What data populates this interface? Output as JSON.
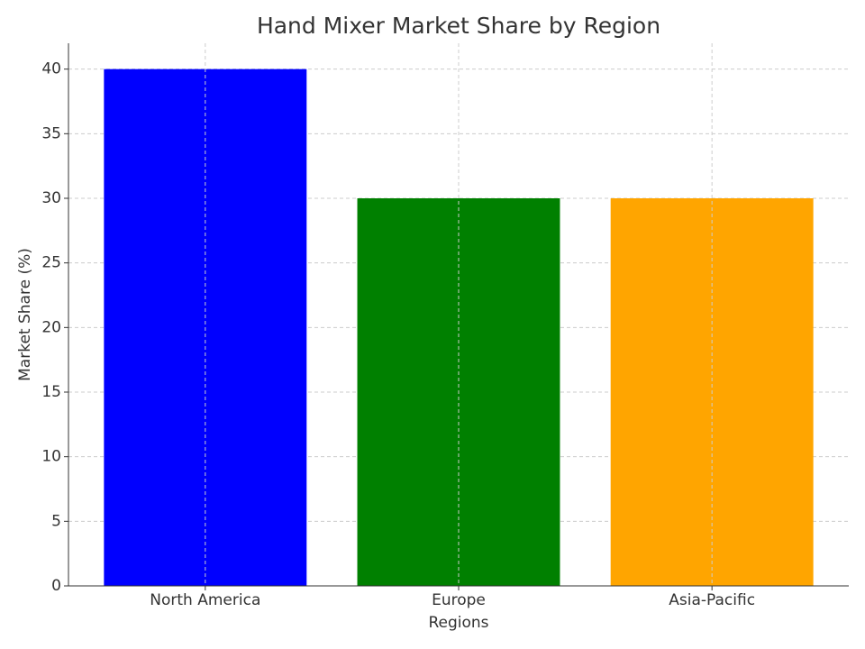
{
  "chart_data": {
    "type": "bar",
    "title": "Hand Mixer Market Share by Region",
    "x_label": "Regions",
    "y_label": "Market Share (%)",
    "categories": [
      "North America",
      "Europe",
      "Asia-Pacific"
    ],
    "values": [
      40,
      30,
      30
    ],
    "colors": [
      "#0000ff",
      "#008000",
      "#ffa500"
    ],
    "ylim": [
      0,
      42
    ],
    "yticks": [
      0,
      5,
      10,
      15,
      20,
      25,
      30,
      35,
      40
    ],
    "grid": true
  }
}
